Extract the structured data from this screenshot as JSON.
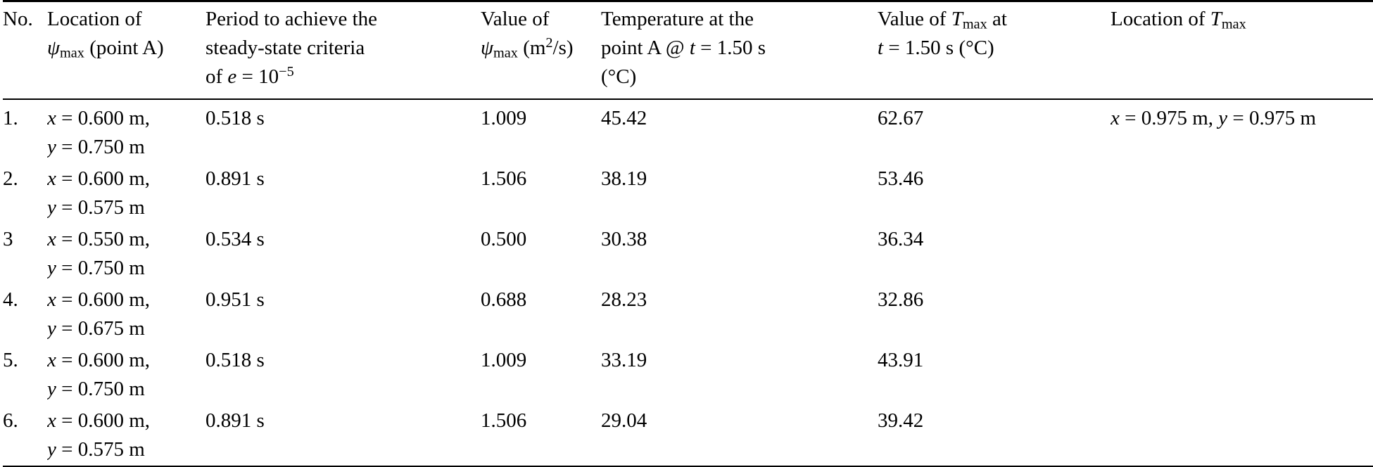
{
  "colors": {
    "background": "#ffffff",
    "text": "#000000",
    "rule": "#000000"
  },
  "table": {
    "headers": [
      {
        "name": "no",
        "label_html": "No."
      },
      {
        "name": "psi-location",
        "label_html": "Location of<br><i>ψ</i><sub>max</sub> (point A)"
      },
      {
        "name": "period",
        "label_html": "Period to achieve the<br>steady-state criteria<br>of <i>e</i> = 10<sup>−5</sup>"
      },
      {
        "name": "psi-value",
        "label_html": "Value of<br><i>ψ</i><sub>max</sub> (m<sup>2</sup>/s)"
      },
      {
        "name": "temp-point-a",
        "label_html": "Temperature at the<br>point A @ <i>t</i> = 1.50 s<br>(°C)"
      },
      {
        "name": "tmax-value",
        "label_html": "Value of <i>T</i><sub>max</sub> at<br><i>t</i> = 1.50 s (°C)"
      },
      {
        "name": "tmax-location",
        "label_html": "Location of <i>T</i><sub>max</sub>"
      }
    ],
    "rows": [
      {
        "no": "1.",
        "psi_location_html": "<i>x</i> = 0.600 m,<br><i>y</i> = 0.750 m",
        "period": "0.518 s",
        "psi_value": "1.009",
        "temp_point_a": "45.42",
        "tmax_value": "62.67",
        "tmax_location_html": "<i>x</i> = 0.975 m, <i>y</i> = 0.975 m"
      },
      {
        "no": "2.",
        "psi_location_html": "<i>x</i> = 0.600 m,<br><i>y</i> = 0.575 m",
        "period": "0.891 s",
        "psi_value": "1.506",
        "temp_point_a": "38.19",
        "tmax_value": "53.46",
        "tmax_location_html": ""
      },
      {
        "no": "3",
        "psi_location_html": "<i>x</i> = 0.550 m,<br><i>y</i> = 0.750 m",
        "period": "0.534 s",
        "psi_value": "0.500",
        "temp_point_a": "30.38",
        "tmax_value": "36.34",
        "tmax_location_html": ""
      },
      {
        "no": "4.",
        "psi_location_html": "<i>x</i> = 0.600 m,<br><i>y</i> = 0.675 m",
        "period": "0.951 s",
        "psi_value": "0.688",
        "temp_point_a": "28.23",
        "tmax_value": "32.86",
        "tmax_location_html": ""
      },
      {
        "no": "5.",
        "psi_location_html": "<i>x</i> = 0.600 m,<br><i>y</i> = 0.750 m",
        "period": "0.518 s",
        "psi_value": "1.009",
        "temp_point_a": "33.19",
        "tmax_value": "43.91",
        "tmax_location_html": ""
      },
      {
        "no": "6.",
        "psi_location_html": "<i>x</i> = 0.600 m,<br><i>y</i> = 0.575 m",
        "period": "0.891 s",
        "psi_value": "1.506",
        "temp_point_a": "29.04",
        "tmax_value": "39.42",
        "tmax_location_html": ""
      }
    ]
  }
}
